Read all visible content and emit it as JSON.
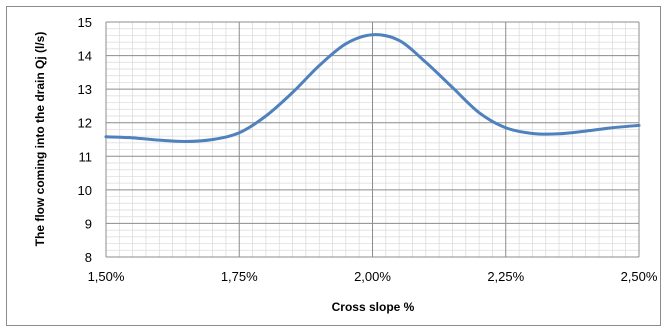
{
  "chart_data": {
    "type": "line",
    "xlabel": "Cross slope %",
    "ylabel": "The flow coming into the drain Qj (l/s)",
    "x_ticks": [
      "1,50%",
      "1,75%",
      "2,00%",
      "2,25%",
      "2,50%"
    ],
    "y_ticks": [
      "8",
      "9",
      "10",
      "11",
      "12",
      "13",
      "14",
      "15"
    ],
    "xlim": [
      1.5,
      2.5
    ],
    "ylim": [
      8,
      15
    ],
    "grid": true,
    "series": [
      {
        "color": "#4f81bd",
        "x": [
          1.5,
          1.55,
          1.6,
          1.65,
          1.7,
          1.75,
          1.8,
          1.85,
          1.9,
          1.95,
          2.0,
          2.05,
          2.1,
          2.15,
          2.2,
          2.25,
          2.3,
          2.35,
          2.4,
          2.45,
          2.5
        ],
        "y": [
          11.58,
          11.55,
          11.48,
          11.44,
          11.5,
          11.7,
          12.2,
          12.9,
          13.7,
          14.35,
          14.62,
          14.45,
          13.8,
          13.05,
          12.3,
          11.85,
          11.68,
          11.67,
          11.75,
          11.85,
          11.92
        ]
      }
    ]
  }
}
